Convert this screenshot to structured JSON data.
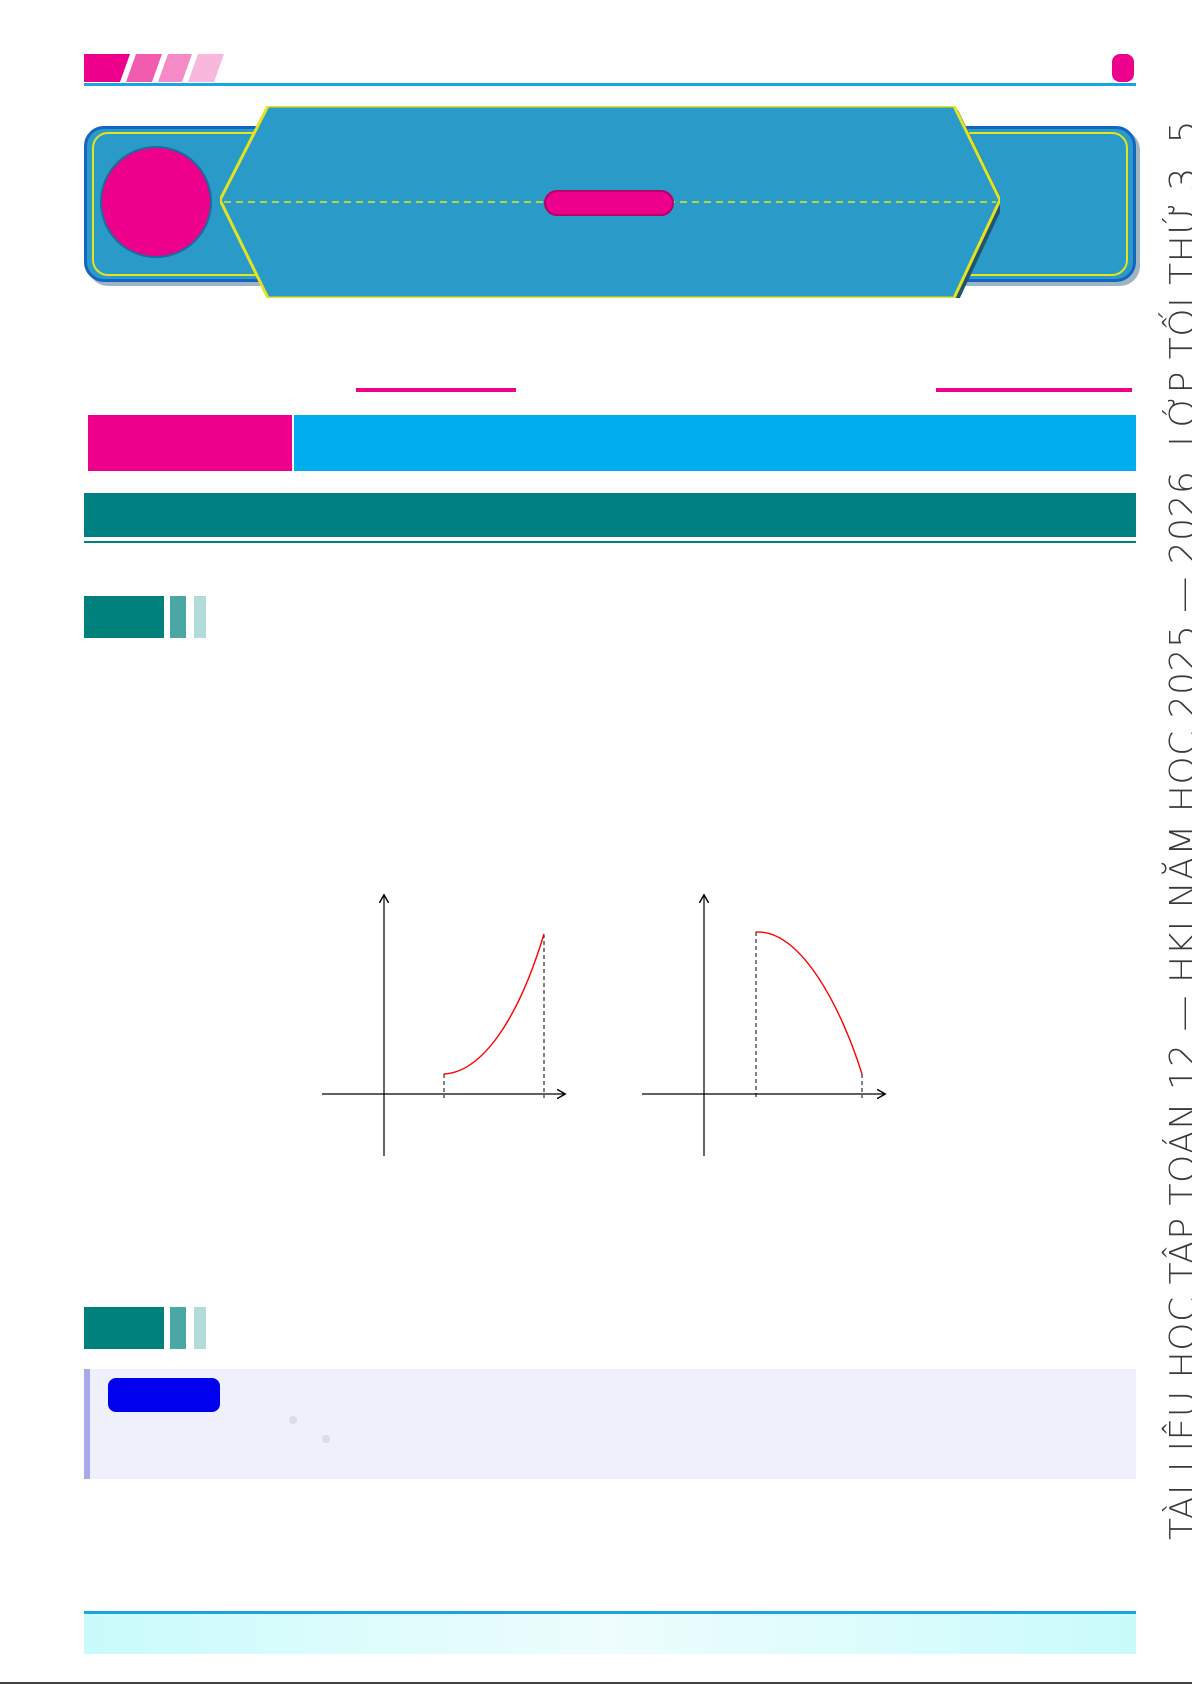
{
  "side_title": "TÀI LIỆU HỌC TẬP TOÁN 12 — HKI NĂM HỌC 2025 — 2026. LỚP TỐI THỨ 3, 5",
  "colors": {
    "accent_pink": "#ec008c",
    "accent_blue": "#00aeef",
    "banner_blue": "#2a9bc8",
    "teal": "#008080",
    "curve_red": "#ff0000",
    "note_badge": "#0000ee"
  },
  "figures": [
    {
      "id": "graph-left",
      "curve": "increasing convex curve between two dashed vertical bounds"
    },
    {
      "id": "graph-right",
      "curve": "decreasing concave curve between two dashed vertical bounds"
    }
  ]
}
